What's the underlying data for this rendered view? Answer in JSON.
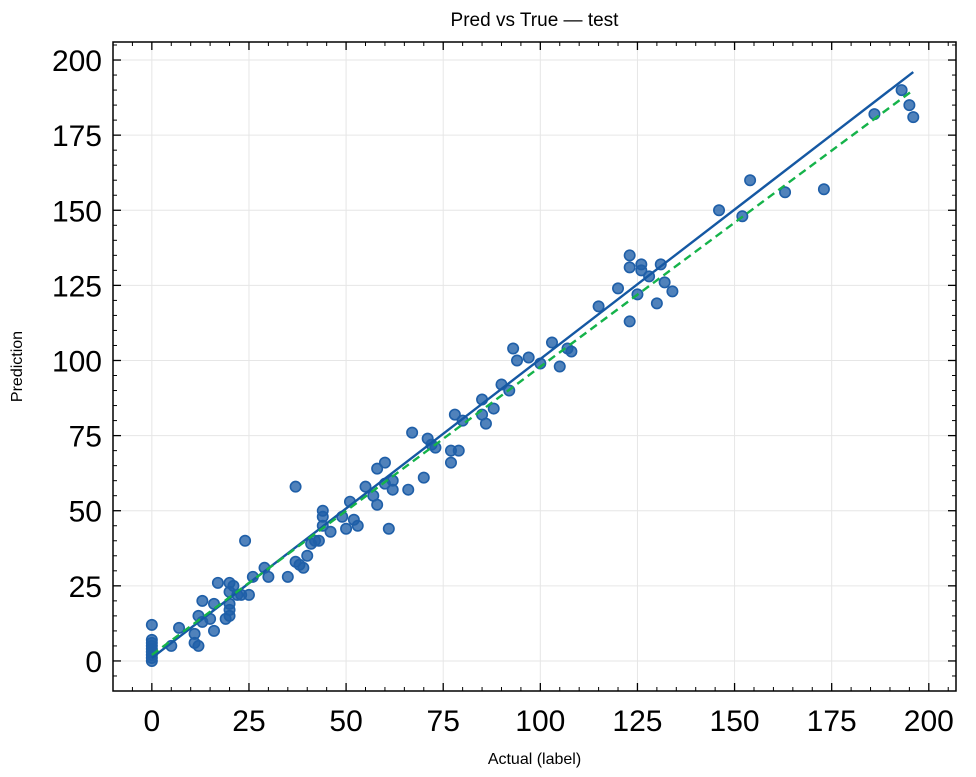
{
  "chart_data": {
    "type": "scatter",
    "title": "Pred vs True — test",
    "xlabel": "Actual (label)",
    "ylabel": "Prediction",
    "xlim": [
      -10,
      207
    ],
    "ylim": [
      -10,
      206
    ],
    "xticks": [
      0,
      25,
      50,
      75,
      100,
      125,
      150,
      175,
      200
    ],
    "yticks": [
      0,
      25,
      50,
      75,
      100,
      125,
      150,
      175,
      200
    ],
    "grid": true,
    "colors": {
      "points": "#1f5fa8",
      "identity_line": "#1558a3",
      "fit_line": "#15b34a",
      "grid": "#e6e6e6"
    },
    "series": [
      {
        "kind": "scatter",
        "points": [
          [
            0,
            0
          ],
          [
            0,
            1
          ],
          [
            0,
            2
          ],
          [
            0,
            3
          ],
          [
            0,
            4
          ],
          [
            0,
            5
          ],
          [
            0,
            6
          ],
          [
            0,
            7
          ],
          [
            0,
            12
          ],
          [
            5,
            5
          ],
          [
            7,
            11
          ],
          [
            11,
            9
          ],
          [
            11,
            6
          ],
          [
            12,
            5
          ],
          [
            12,
            15
          ],
          [
            13,
            13
          ],
          [
            13,
            20
          ],
          [
            15,
            14
          ],
          [
            16,
            19
          ],
          [
            16,
            10
          ],
          [
            17,
            26
          ],
          [
            19,
            14
          ],
          [
            20,
            15
          ],
          [
            20,
            17
          ],
          [
            20,
            19
          ],
          [
            20,
            23
          ],
          [
            20,
            26
          ],
          [
            21,
            25
          ],
          [
            22,
            22
          ],
          [
            23,
            22
          ],
          [
            24,
            40
          ],
          [
            25,
            22
          ],
          [
            26,
            28
          ],
          [
            29,
            31
          ],
          [
            30,
            28
          ],
          [
            35,
            28
          ],
          [
            37,
            33
          ],
          [
            37,
            58
          ],
          [
            38,
            32
          ],
          [
            39,
            31
          ],
          [
            40,
            35
          ],
          [
            41,
            39
          ],
          [
            42,
            40
          ],
          [
            43,
            40
          ],
          [
            44,
            45
          ],
          [
            44,
            48
          ],
          [
            44,
            50
          ],
          [
            46,
            43
          ],
          [
            49,
            48
          ],
          [
            50,
            44
          ],
          [
            51,
            53
          ],
          [
            52,
            47
          ],
          [
            53,
            45
          ],
          [
            55,
            58
          ],
          [
            57,
            55
          ],
          [
            58,
            52
          ],
          [
            58,
            64
          ],
          [
            60,
            59
          ],
          [
            60,
            66
          ],
          [
            61,
            44
          ],
          [
            62,
            57
          ],
          [
            62,
            60
          ],
          [
            66,
            57
          ],
          [
            67,
            76
          ],
          [
            70,
            61
          ],
          [
            71,
            74
          ],
          [
            72,
            72
          ],
          [
            73,
            71
          ],
          [
            77,
            66
          ],
          [
            77,
            70
          ],
          [
            78,
            82
          ],
          [
            79,
            70
          ],
          [
            80,
            80
          ],
          [
            85,
            82
          ],
          [
            85,
            87
          ],
          [
            86,
            79
          ],
          [
            88,
            84
          ],
          [
            90,
            92
          ],
          [
            92,
            90
          ],
          [
            93,
            104
          ],
          [
            94,
            100
          ],
          [
            97,
            101
          ],
          [
            100,
            99
          ],
          [
            103,
            106
          ],
          [
            105,
            98
          ],
          [
            107,
            104
          ],
          [
            108,
            103
          ],
          [
            115,
            118
          ],
          [
            120,
            124
          ],
          [
            123,
            135
          ],
          [
            123,
            131
          ],
          [
            123,
            113
          ],
          [
            125,
            122
          ],
          [
            126,
            132
          ],
          [
            126,
            130
          ],
          [
            128,
            128
          ],
          [
            130,
            119
          ],
          [
            131,
            132
          ],
          [
            132,
            126
          ],
          [
            134,
            123
          ],
          [
            146,
            150
          ],
          [
            152,
            148
          ],
          [
            154,
            160
          ],
          [
            163,
            156
          ],
          [
            173,
            157
          ],
          [
            186,
            182
          ],
          [
            193,
            190
          ],
          [
            195,
            185
          ],
          [
            196,
            181
          ]
        ]
      },
      {
        "kind": "line",
        "style": "solid",
        "x": [
          0,
          196
        ],
        "y": [
          1,
          196
        ]
      },
      {
        "kind": "line",
        "style": "dashed",
        "x": [
          0,
          196
        ],
        "y": [
          2,
          190
        ]
      }
    ]
  }
}
